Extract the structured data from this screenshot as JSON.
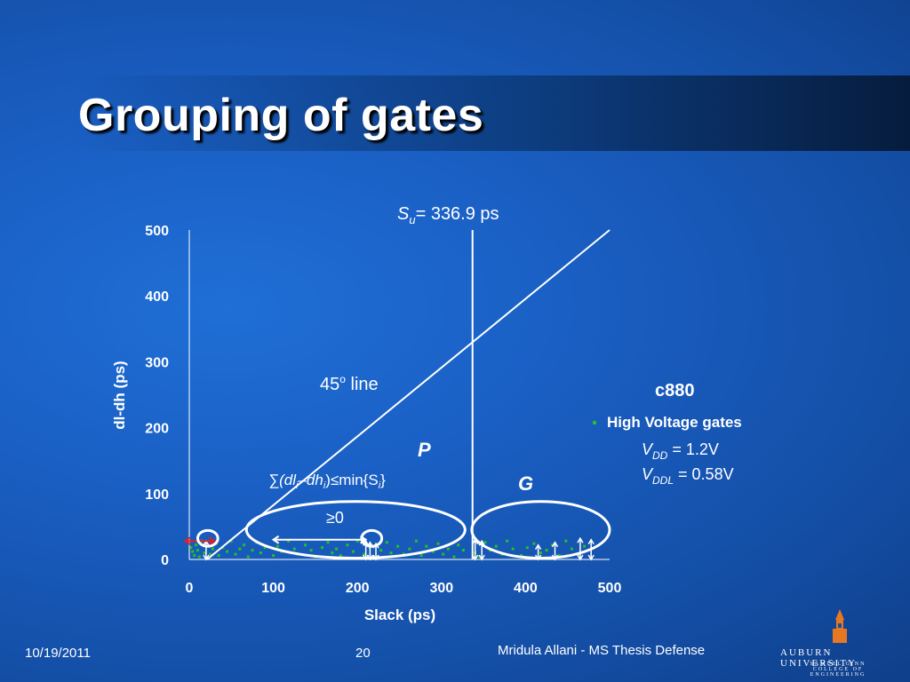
{
  "slide": {
    "title": "Grouping of gates",
    "footer_date": "10/19/2011",
    "footer_page": "20",
    "footer_author": "Mridula Allani - MS Thesis Defense",
    "logo_main": "AUBURN UNIVERSITY",
    "logo_sub1": "SAMUEL GINN",
    "logo_sub2": "COLLEGE OF ENGINEERING"
  },
  "chart_data": {
    "type": "scatter",
    "xlabel": "Slack (ps)",
    "ylabel": "dl-dh (ps)",
    "xlim": [
      0,
      500
    ],
    "ylim": [
      0,
      500
    ],
    "xticks": [
      "0",
      "100",
      "200",
      "300",
      "400",
      "500"
    ],
    "yticks": [
      "0",
      "100",
      "200",
      "300",
      "400",
      "500"
    ],
    "grid": false,
    "legend": {
      "placement": "right",
      "title": "c880",
      "entries": [
        "High Voltage gates"
      ],
      "marker_color": "#22c322"
    },
    "reference_lines": [
      {
        "type": "diagonal",
        "label": "45° line"
      },
      {
        "type": "vertical",
        "x": 336.9,
        "label": "Su = 336.9 ps"
      }
    ],
    "annotations": {
      "su": {
        "var": "S",
        "sub": "u",
        "text": "= 336.9 ps"
      },
      "line45": {
        "text": "45",
        "sup": "o",
        "tail": " line"
      },
      "p_label": "P",
      "g_label": "G",
      "sum_open": "∑(dl",
      "sum_sub1": "i",
      "sum_mid": "–dh",
      "sum_sub2": "i",
      "sum_min": ")≤min{S",
      "sum_sub3": "i",
      "sum_close": "}",
      "geq0": "≥0",
      "vdd_var": "V",
      "vdd_sub": "DD",
      "vdd_val": " = 1.2V",
      "vddl_var": "V",
      "vddl_sub": "DDL",
      "vddl_val": " = 0.58V"
    },
    "series": [
      {
        "name": "High Voltage gates",
        "color": "#22c322",
        "points": [
          [
            2,
            18
          ],
          [
            4,
            12
          ],
          [
            6,
            6
          ],
          [
            8,
            22
          ],
          [
            10,
            14
          ],
          [
            12,
            4
          ],
          [
            15,
            28
          ],
          [
            18,
            10
          ],
          [
            22,
            20
          ],
          [
            25,
            8
          ],
          [
            28,
            16
          ],
          [
            32,
            24
          ],
          [
            35,
            6
          ],
          [
            40,
            18
          ],
          [
            45,
            12
          ],
          [
            50,
            28
          ],
          [
            55,
            8
          ],
          [
            60,
            16
          ],
          [
            65,
            22
          ],
          [
            70,
            4
          ],
          [
            75,
            14
          ],
          [
            80,
            26
          ],
          [
            85,
            10
          ],
          [
            90,
            18
          ],
          [
            100,
            6
          ],
          [
            105,
            20
          ],
          [
            110,
            12
          ],
          [
            118,
            28
          ],
          [
            125,
            16
          ],
          [
            130,
            8
          ],
          [
            138,
            22
          ],
          [
            145,
            14
          ],
          [
            150,
            4
          ],
          [
            158,
            18
          ],
          [
            165,
            26
          ],
          [
            170,
            10
          ],
          [
            175,
            16
          ],
          [
            180,
            6
          ],
          [
            188,
            22
          ],
          [
            195,
            12
          ],
          [
            200,
            28
          ],
          [
            208,
            8
          ],
          [
            215,
            18
          ],
          [
            222,
            4
          ],
          [
            228,
            14
          ],
          [
            235,
            26
          ],
          [
            240,
            10
          ],
          [
            248,
            20
          ],
          [
            255,
            8
          ],
          [
            262,
            16
          ],
          [
            270,
            28
          ],
          [
            276,
            6
          ],
          [
            282,
            20
          ],
          [
            290,
            12
          ],
          [
            296,
            24
          ],
          [
            302,
            8
          ],
          [
            308,
            16
          ],
          [
            315,
            4
          ],
          [
            320,
            22
          ],
          [
            326,
            14
          ],
          [
            340,
            10
          ],
          [
            345,
            4
          ],
          [
            352,
            26
          ],
          [
            358,
            14
          ],
          [
            365,
            20
          ],
          [
            372,
            8
          ],
          [
            378,
            28
          ],
          [
            385,
            16
          ],
          [
            395,
            6
          ],
          [
            402,
            18
          ],
          [
            410,
            24
          ],
          [
            418,
            10
          ],
          [
            425,
            14
          ],
          [
            432,
            22
          ],
          [
            440,
            6
          ],
          [
            448,
            28
          ],
          [
            455,
            16
          ],
          [
            462,
            8
          ],
          [
            470,
            20
          ]
        ]
      }
    ],
    "arrows": [
      {
        "x": 20,
        "y1": 0,
        "y2": 28
      },
      {
        "x": 210,
        "y1": 0,
        "y2": 28
      },
      {
        "x": 215,
        "y1": 0,
        "y2": 26
      },
      {
        "x": 222,
        "y1": 0,
        "y2": 24
      },
      {
        "x": 340,
        "y1": 0,
        "y2": 30
      },
      {
        "x": 348,
        "y1": 0,
        "y2": 28
      },
      {
        "x": 415,
        "y1": 0,
        "y2": 22
      },
      {
        "x": 435,
        "y1": 0,
        "y2": 26
      },
      {
        "x": 465,
        "y1": 0,
        "y2": 32
      },
      {
        "x": 478,
        "y1": 0,
        "y2": 30
      }
    ],
    "groups": [
      {
        "label": "",
        "cx": 22,
        "cy": 32,
        "rx": 12,
        "ry": 12
      },
      {
        "label": "P",
        "cx": 198,
        "cy": 45,
        "rx": 130,
        "ry": 43
      },
      {
        "label": "",
        "cx": 217,
        "cy": 32,
        "rx": 12,
        "ry": 12
      },
      {
        "label": "G",
        "cx": 418,
        "cy": 45,
        "rx": 82,
        "ry": 43
      }
    ],
    "hrange_arrows": [
      {
        "x1": 100,
        "x2": 210,
        "y": 30
      },
      {
        "x1": -5,
        "x2": 30,
        "y": 28,
        "color": "#e0202a"
      }
    ]
  }
}
